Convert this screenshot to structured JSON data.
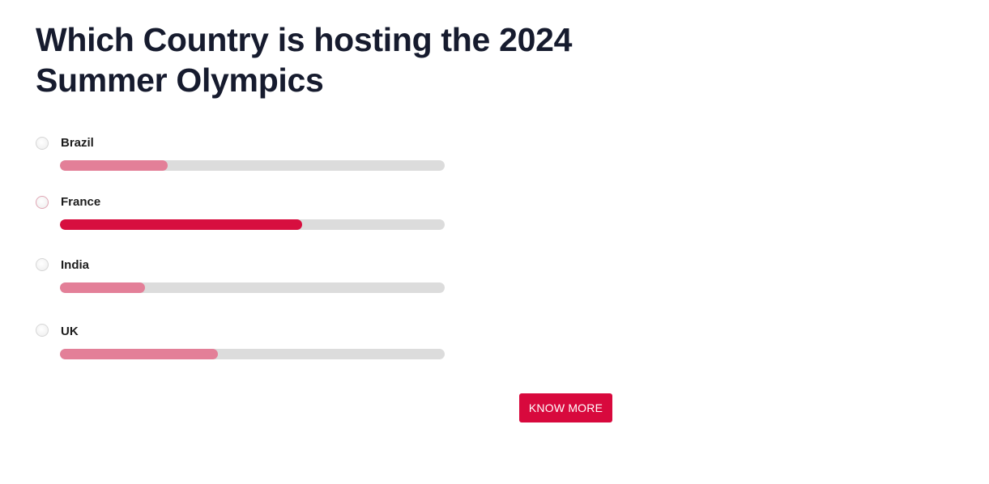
{
  "poll": {
    "question": "Which Country is hosting the 2024 Summer Olympics",
    "options": [
      {
        "label": "Brazil",
        "fraction": 0.28,
        "selected": false
      },
      {
        "label": "France",
        "fraction": 0.63,
        "selected": true
      },
      {
        "label": "India",
        "fraction": 0.22,
        "selected": false
      },
      {
        "label": "UK",
        "fraction": 0.41,
        "selected": false
      }
    ]
  },
  "actions": {
    "know_more_label": "KNOW MORE"
  },
  "colors": {
    "accent": "#d8093d",
    "bar_selected": "#d70f3f",
    "bar_default": "#e37f98",
    "track": "#dcdcdc",
    "heading": "#161b2e"
  }
}
